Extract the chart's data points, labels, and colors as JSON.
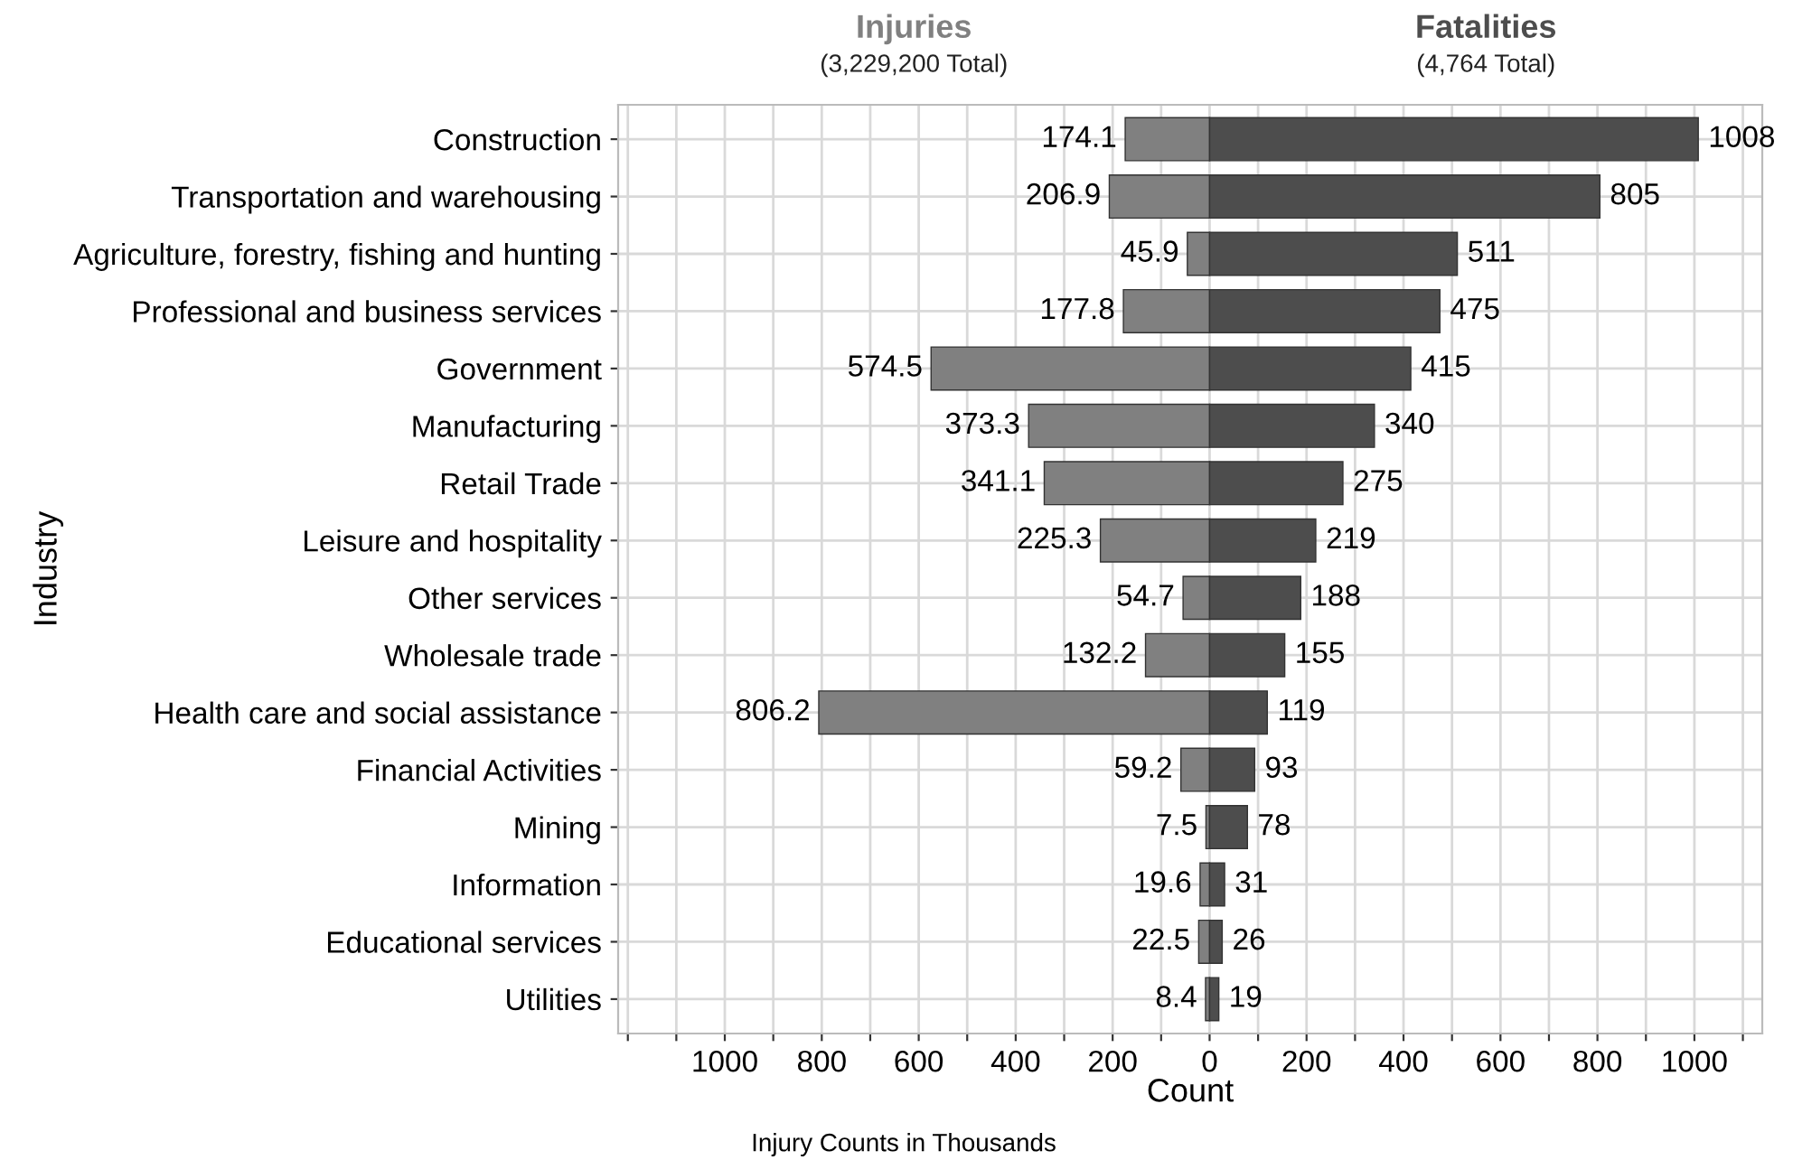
{
  "chart_data": {
    "type": "bar",
    "orientation": "horizontal",
    "xlabel": "Count",
    "ylabel": "Industry",
    "categories": [
      "Construction",
      "Transportation and warehousing",
      "Agriculture, forestry, fishing and hunting",
      "Professional and business services",
      "Government",
      "Manufacturing",
      "Retail Trade",
      "Leisure and hospitality",
      "Other services",
      "Wholesale trade",
      "Health care and social assistance",
      "Financial Activities",
      "Mining",
      "Information",
      "Educational services",
      "Utilities"
    ],
    "series": [
      {
        "name": "Injuries",
        "color": "#808080",
        "values": [
          174.1,
          206.9,
          45.9,
          177.8,
          574.5,
          373.3,
          341.1,
          225.3,
          54.7,
          132.2,
          806.2,
          59.2,
          7.5,
          19.6,
          22.5,
          8.4
        ],
        "base": [
          -174.1,
          -206.9,
          -45.9,
          -177.8,
          -574.5,
          -373.3,
          -341.1,
          -225.3,
          -54.7,
          -132.2,
          -806.2,
          -59.2,
          -7.5,
          -19.6,
          -22.5,
          -8.4
        ],
        "value_labels": [
          "174.1",
          "206.9",
          "45.9",
          "177.8",
          "574.5",
          "373.3",
          "341.1",
          "225.3",
          "54.7",
          "132.2",
          "806.2",
          "59.2",
          "7.5",
          "19.6",
          "22.5",
          "8.4"
        ]
      },
      {
        "name": "Fatalities",
        "color": "#4d4d4d",
        "values": [
          1008,
          805,
          511,
          475,
          415,
          340,
          275,
          219,
          188,
          155,
          119,
          93,
          78,
          31,
          26,
          19
        ],
        "value_labels": [
          "1008",
          "805",
          "511",
          "475",
          "415",
          "340",
          "275",
          "219",
          "188",
          "155",
          "119",
          "93",
          "78",
          "31",
          "26",
          "19"
        ]
      }
    ],
    "xlim": [
      -1220,
      1140
    ],
    "xticks": [
      {
        "value": -1200,
        "label": null
      },
      {
        "value": -1100,
        "label": null
      },
      {
        "value": -1000,
        "label": "1000"
      },
      {
        "value": -900,
        "label": null
      },
      {
        "value": -800,
        "label": "800"
      },
      {
        "value": -700,
        "label": null
      },
      {
        "value": -600,
        "label": "600"
      },
      {
        "value": -500,
        "label": null
      },
      {
        "value": -400,
        "label": "400"
      },
      {
        "value": -300,
        "label": null
      },
      {
        "value": -200,
        "label": "200"
      },
      {
        "value": -100,
        "label": null
      },
      0,
      {
        "value": 100,
        "label": null
      },
      200,
      {
        "value": 300,
        "label": null
      },
      400,
      {
        "value": 500,
        "label": null
      },
      600,
      {
        "value": 700,
        "label": null
      },
      800,
      {
        "value": 900,
        "label": null
      },
      1000,
      {
        "value": 1100,
        "label": null
      }
    ],
    "annotations": [
      "(3,229,200 Total)",
      "(4,764 Total)",
      "Injury Counts in Thousands"
    ],
    "grid": true,
    "legend": false
  }
}
